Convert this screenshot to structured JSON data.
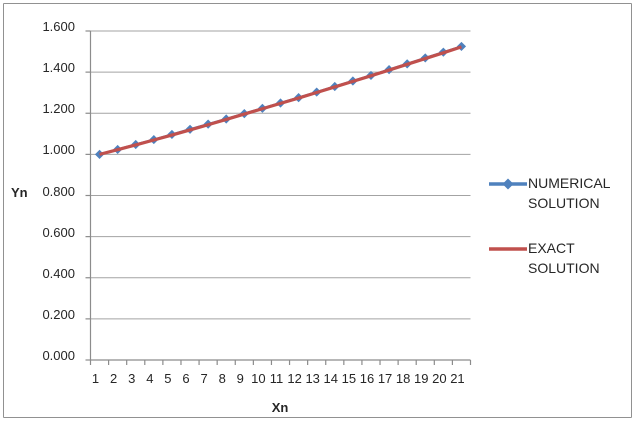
{
  "chart_data": {
    "type": "line",
    "title": "",
    "xlabel": "Xn",
    "ylabel": "Yn",
    "x": [
      1,
      2,
      3,
      4,
      5,
      6,
      7,
      8,
      9,
      10,
      11,
      12,
      13,
      14,
      15,
      16,
      17,
      18,
      19,
      20,
      21
    ],
    "xtick_labels": [
      "1",
      "2",
      "3",
      "4",
      "5",
      "6",
      "7",
      "8",
      "9",
      "10",
      "11",
      "12",
      "13",
      "14",
      "15",
      "16",
      "17",
      "18",
      "19",
      "20",
      "21"
    ],
    "ytick_labels": [
      "1.600",
      "1.400",
      "1.200",
      "1.000",
      "0.800",
      "0.600",
      "0.400",
      "0.200",
      "0.000"
    ],
    "ylim": [
      0,
      1.6
    ],
    "ytick_step": 0.2,
    "grid": "horizontal",
    "legend_position": "right",
    "series": [
      {
        "name": "NUMERICAL SOLUTION",
        "color": "#4F81BD",
        "marker": "diamond",
        "values": [
          1.0,
          1.024,
          1.048,
          1.072,
          1.097,
          1.122,
          1.147,
          1.172,
          1.198,
          1.224,
          1.25,
          1.276,
          1.303,
          1.33,
          1.357,
          1.384,
          1.412,
          1.44,
          1.469,
          1.497,
          1.525
        ]
      },
      {
        "name": "EXACT SOLUTION",
        "color": "#C0504D",
        "marker": "none",
        "values": [
          1.0,
          1.023,
          1.046,
          1.07,
          1.094,
          1.119,
          1.144,
          1.17,
          1.196,
          1.222,
          1.248,
          1.274,
          1.301,
          1.328,
          1.355,
          1.382,
          1.41,
          1.438,
          1.466,
          1.494,
          1.523
        ]
      }
    ]
  },
  "colors": {
    "gridline": "#A3A3A3",
    "axis": "#8C8C8C",
    "border": "#919191",
    "text": "#262626",
    "background": "#FFFFFF"
  }
}
